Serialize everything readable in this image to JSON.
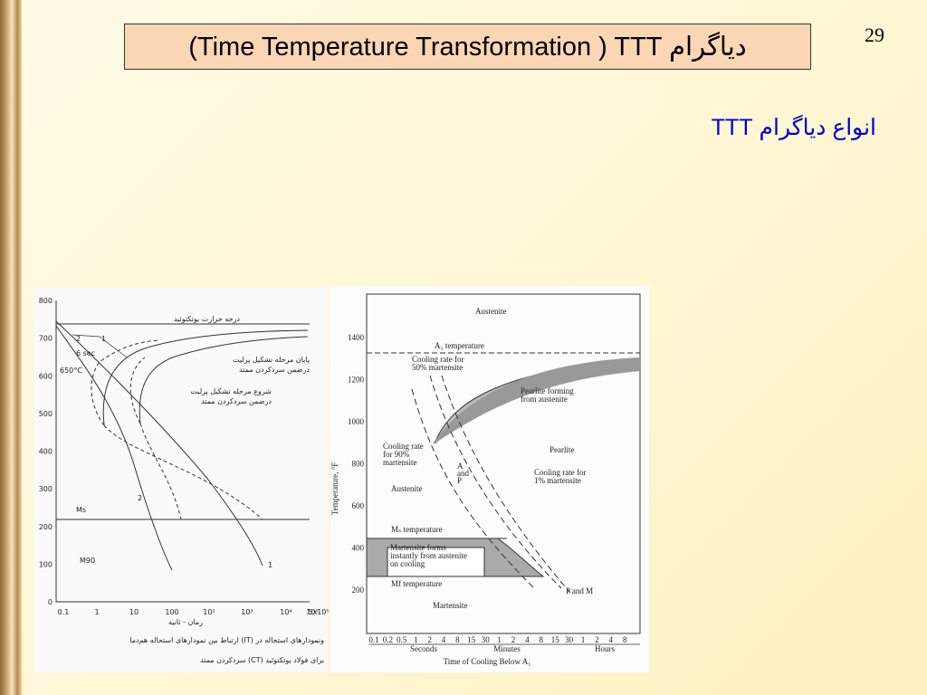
{
  "slide_number": "29",
  "title": "(Time Temperature Transformation ) TTT دیاگرام",
  "subtitle": "انواع دیاگرام TTT",
  "figure_left": {
    "yticks": [
      "800",
      "700",
      "600",
      "500",
      "400",
      "300",
      "200",
      "100",
      "0"
    ],
    "xticks": [
      "0.1",
      "1",
      "10",
      "100",
      "10²",
      "10³",
      "10⁴",
      "10⁵",
      "5x10⁵"
    ],
    "x_label": "زمان - ثانیه",
    "eutectoid_label": "درجه حرارت یوتکتوئید",
    "end_label": [
      "پایان مرحله تشکیل پرلیت",
      "درضمن سردکردن ممتد"
    ],
    "start_label": [
      "شروع مرحله تشکیل پرلیت",
      "درضمن سردکردن ممتد"
    ],
    "temp_label": "650°C",
    "time_label": "6 sec",
    "ms_label": "Ms",
    "m90_label": "M90",
    "curve_labels": [
      "1",
      "2",
      "2",
      "1"
    ],
    "caption": [
      "ارتباط بین نمودارهای استحاله هم‌دما (IT) ونمودارهای استحاله در",
      "سردکردن ممتد (CT) برای فولاد یوتکتوئید"
    ]
  },
  "figure_right": {
    "yticks": [
      "1400",
      "1200",
      "1000",
      "800",
      "600",
      "400",
      "200"
    ],
    "xticks": [
      "0.1",
      "0.2",
      "0.5",
      "1",
      "2",
      "4",
      "8",
      "15",
      "30",
      "1",
      "2",
      "4",
      "8",
      "15",
      "30",
      "1",
      "2",
      "4",
      "8"
    ],
    "units": [
      "Seconds",
      "Minutes",
      "Hours"
    ],
    "x_label": "Time of Cooling Below A₁",
    "y_label": "Temperature, °F",
    "annotations": {
      "austenite_top": "Austenite",
      "a1": "A₁ temperature",
      "rate50": [
        "Cooling rate for",
        "50% martensite"
      ],
      "pearlite_forming": [
        "Pearlite forming",
        "from austenite"
      ],
      "pearlite": "Pearlite",
      "rate90": [
        "Cooling rate",
        "for 90%",
        "martensite"
      ],
      "a_and_p": [
        "A",
        "and",
        "P"
      ],
      "rate1": [
        "Cooling rate for",
        "1% martensite"
      ],
      "austenite": "Austenite",
      "ms": "Mₛ temperature",
      "martensite_forms": [
        "Martensite forms",
        "instantly from austenite",
        "on cooling"
      ],
      "mf": "Mf temperature",
      "p_and_m": "P and M",
      "martensite": "Martensite"
    }
  }
}
